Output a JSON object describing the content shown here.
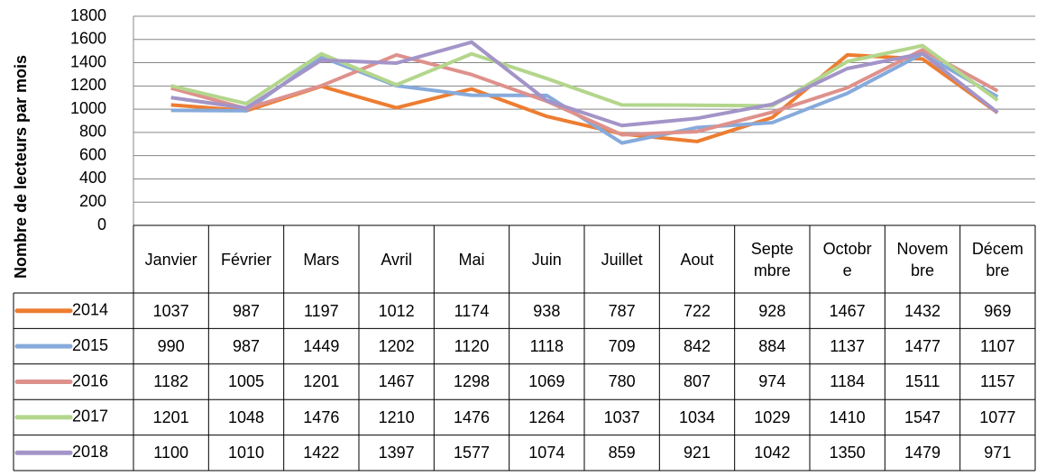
{
  "chart_data": {
    "type": "line",
    "y_label": "Nombre de lecteurs par mois",
    "categories": [
      "Janvier",
      "Février",
      "Mars",
      "Avril",
      "Mai",
      "Juin",
      "Juillet",
      "Aout",
      "Septembre",
      "Octobre",
      "Novembre",
      "Décembre"
    ],
    "series": [
      {
        "name": "2014",
        "color": "#ED7D31",
        "values": [
          1037,
          987,
          1197,
          1012,
          1174,
          938,
          787,
          722,
          928,
          1467,
          1432,
          969
        ]
      },
      {
        "name": "2015",
        "color": "#86AADB",
        "values": [
          990,
          987,
          1449,
          1202,
          1120,
          1118,
          709,
          842,
          884,
          1137,
          1477,
          1107
        ]
      },
      {
        "name": "2016",
        "color": "#DE918C",
        "values": [
          1182,
          1005,
          1201,
          1467,
          1298,
          1069,
          780,
          807,
          974,
          1184,
          1511,
          1157
        ]
      },
      {
        "name": "2017",
        "color": "#B3D68C",
        "values": [
          1201,
          1048,
          1476,
          1210,
          1476,
          1264,
          1037,
          1034,
          1029,
          1410,
          1547,
          1077
        ]
      },
      {
        "name": "2018",
        "color": "#A394C8",
        "values": [
          1100,
          1010,
          1422,
          1397,
          1577,
          1074,
          859,
          921,
          1042,
          1350,
          1479,
          971
        ]
      }
    ],
    "ylim": [
      0,
      1800
    ],
    "yticks": [
      0,
      200,
      400,
      600,
      800,
      1000,
      1200,
      1400,
      1600,
      1800
    ],
    "grid": true
  }
}
